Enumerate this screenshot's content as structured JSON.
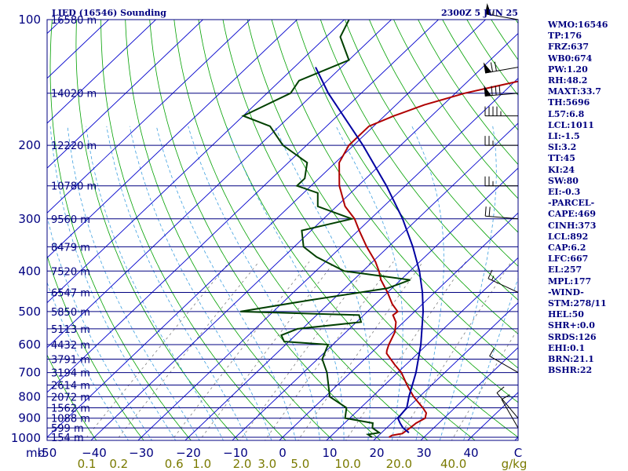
{
  "header": {
    "title_left": "LIED (16546) Sounding",
    "title_right": "2300Z  5 JUN 25"
  },
  "indices": [
    "WMO:16546",
    "TP:176",
    "FRZ:637",
    "WB0:674",
    "PW:1.20",
    "RH:48.2",
    "MAXT:33.7",
    "TH:5696",
    "L57:6.8",
    "LCL:1011",
    "LI:-1.5",
    "SI:3.2",
    "TT:45",
    "KI:24",
    "SW:80",
    "EI:-0.3",
    "-PARCEL-",
    "CAPE:469",
    "CINH:373",
    "LCL:892",
    "CAP:6.2",
    "LFC:667",
    "EL:257",
    "MPL:177",
    "-WIND-",
    "STM:278/11",
    "HEL:50",
    "SHR+:0.0",
    "SRDS:126",
    "EHI:0.1",
    "BRN:21.1",
    "BSHR:22"
  ],
  "colors": {
    "frame": "#000080",
    "isobar": "#000080",
    "isotherm": "#0000cc",
    "dry_adiabat": "#00a000",
    "moist_adiabat": "#3fa0e0",
    "mixing_ratio": "#808080",
    "temperature": "#b00000",
    "dewpoint": "#004000",
    "parcel": "#0000a0",
    "mixing_ratio_label": "#7a7a00",
    "wind_barb": "#000000"
  },
  "chart_data": {
    "type": "line",
    "chart_kind": "skew-T log-P sounding",
    "title": "LIED (16546) Sounding",
    "valid_time": "2300Z  5 JUN 25",
    "y_axis": {
      "quantity": "pressure",
      "unit_label": "mb",
      "scale": "log",
      "ylim": [
        1000,
        100
      ],
      "ticks": [
        1000,
        900,
        800,
        700,
        600,
        500,
        400,
        300,
        200,
        100
      ]
    },
    "x_axis": {
      "quantity": "temperature",
      "unit_label": "C",
      "xlim": [
        -50,
        50
      ],
      "ticks": [
        -50,
        -40,
        -30,
        -20,
        -10,
        0,
        10,
        20,
        30,
        40
      ],
      "tick_labels": [
        "-50",
        "−40",
        "−30",
        "−20",
        "−10",
        "0",
        "10",
        "20",
        "30",
        "40"
      ],
      "end_label": "C"
    },
    "height_labels": [
      {
        "p": 100,
        "label": "16580 m"
      },
      {
        "p": 150,
        "label": "14020 m"
      },
      {
        "p": 200,
        "label": "12220 m"
      },
      {
        "p": 250,
        "label": "10780 m"
      },
      {
        "p": 300,
        "label": "9560 m"
      },
      {
        "p": 350,
        "label": "8479 m"
      },
      {
        "p": 400,
        "label": "7520 m"
      },
      {
        "p": 450,
        "label": "6547 m"
      },
      {
        "p": 500,
        "label": "5850 m"
      },
      {
        "p": 550,
        "label": "5113 m"
      },
      {
        "p": 600,
        "label": "4432 m"
      },
      {
        "p": 650,
        "label": "3791 m"
      },
      {
        "p": 700,
        "label": "3194 m"
      },
      {
        "p": 750,
        "label": "2614 m"
      },
      {
        "p": 800,
        "label": "2072 m"
      },
      {
        "p": 850,
        "label": "1562 m"
      },
      {
        "p": 900,
        "label": "1088 m"
      },
      {
        "p": 950,
        "label": "599 m"
      },
      {
        "p": 1000,
        "label": "154 m"
      }
    ],
    "mixing_ratio_axis": {
      "unit_label": "g/kg",
      "values": [
        0.1,
        0.2,
        0.6,
        1.0,
        2.0,
        3.0,
        5.0,
        10.0,
        20.0,
        40.0
      ],
      "labels": [
        "0.1",
        "0.2",
        "0.6",
        "1.0",
        "2.0",
        "3.0",
        "5.0",
        "10.0",
        "20.0",
        "40.0"
      ]
    },
    "series": [
      {
        "key": "temperature",
        "points": [
          [
            1000,
            22.6
          ],
          [
            990,
            22.8
          ],
          [
            980,
            24.6
          ],
          [
            950,
            25.0
          ],
          [
            925,
            25.2
          ],
          [
            900,
            26.0
          ],
          [
            875,
            25.1
          ],
          [
            850,
            23.2
          ],
          [
            800,
            18.8
          ],
          [
            750,
            14.8
          ],
          [
            700,
            10.8
          ],
          [
            670,
            7.6
          ],
          [
            630,
            3.4
          ],
          [
            620,
            2.8
          ],
          [
            600,
            1.9
          ],
          [
            560,
            0.4
          ],
          [
            530,
            -1.6
          ],
          [
            510,
            -3.8
          ],
          [
            500,
            -3.6
          ],
          [
            480,
            -6.4
          ],
          [
            450,
            -10.0
          ],
          [
            420,
            -14.2
          ],
          [
            400,
            -16.6
          ],
          [
            380,
            -19.4
          ],
          [
            350,
            -24.6
          ],
          [
            320,
            -29.8
          ],
          [
            300,
            -33.4
          ],
          [
            280,
            -38.2
          ],
          [
            250,
            -44.0
          ],
          [
            220,
            -49.2
          ],
          [
            200,
            -51.0
          ],
          [
            180,
            -51.0
          ],
          [
            170,
            -48.0
          ],
          [
            160,
            -44.0
          ],
          [
            150,
            -38.0
          ],
          [
            135,
            -24.0
          ],
          [
            115,
            -20.0
          ],
          [
            100,
            -19.0
          ]
        ]
      },
      {
        "key": "dewpoint",
        "points": [
          [
            1000,
            19.0
          ],
          [
            985,
            17.5
          ],
          [
            975,
            19.5
          ],
          [
            950,
            17.0
          ],
          [
            925,
            16.0
          ],
          [
            900,
            9.0
          ],
          [
            850,
            7.0
          ],
          [
            800,
            1.0
          ],
          [
            700,
            -5.0
          ],
          [
            650,
            -9.0
          ],
          [
            600,
            -11.0
          ],
          [
            590,
            -21.0
          ],
          [
            570,
            -23.0
          ],
          [
            550,
            -21.0
          ],
          [
            530,
            -9.0
          ],
          [
            510,
            -11.0
          ],
          [
            500,
            -37.0
          ],
          [
            470,
            -25.0
          ],
          [
            440,
            -11.0
          ],
          [
            420,
            -8.0
          ],
          [
            400,
            -24.0
          ],
          [
            370,
            -33.0
          ],
          [
            350,
            -38.0
          ],
          [
            320,
            -42.0
          ],
          [
            300,
            -34.0
          ],
          [
            280,
            -44.0
          ],
          [
            260,
            -47.0
          ],
          [
            250,
            -53.0
          ],
          [
            240,
            -53.0
          ],
          [
            220,
            -56.0
          ],
          [
            200,
            -65.0
          ],
          [
            180,
            -72.0
          ],
          [
            170,
            -80.0
          ],
          [
            150,
            -75.0
          ],
          [
            140,
            -76.0
          ],
          [
            125,
            -70.0
          ],
          [
            110,
            -77.0
          ],
          [
            100,
            -79.0
          ]
        ]
      },
      {
        "key": "parcel",
        "points": [
          [
            975,
            25.8
          ],
          [
            950,
            23.5
          ],
          [
            925,
            21.8
          ],
          [
            900,
            20.2
          ],
          [
            850,
            19.8
          ],
          [
            800,
            17.8
          ],
          [
            700,
            13.9
          ],
          [
            600,
            8.7
          ],
          [
            500,
            1.8
          ],
          [
            450,
            -2.6
          ],
          [
            400,
            -8.0
          ],
          [
            350,
            -14.8
          ],
          [
            300,
            -23.2
          ],
          [
            250,
            -34.0
          ],
          [
            200,
            -48.0
          ],
          [
            150,
            -67.0
          ],
          [
            130,
            -75.5
          ]
        ]
      }
    ],
    "wind_barbs": [
      {
        "p": 100,
        "dir": 280,
        "speed_kt": 55
      },
      {
        "p": 130,
        "dir": 260,
        "speed_kt": 70
      },
      {
        "p": 150,
        "dir": 265,
        "speed_kt": 80
      },
      {
        "p": 170,
        "dir": 270,
        "speed_kt": 45
      },
      {
        "p": 200,
        "dir": 270,
        "speed_kt": 25
      },
      {
        "p": 250,
        "dir": 270,
        "speed_kt": 25
      },
      {
        "p": 300,
        "dir": 275,
        "speed_kt": 20
      },
      {
        "p": 450,
        "dir": 295,
        "speed_kt": 15
      },
      {
        "p": 700,
        "dir": 300,
        "speed_kt": 10
      },
      {
        "p": 900,
        "dir": 320,
        "speed_kt": 10
      },
      {
        "p": 950,
        "dir": 330,
        "speed_kt": 8
      }
    ]
  }
}
